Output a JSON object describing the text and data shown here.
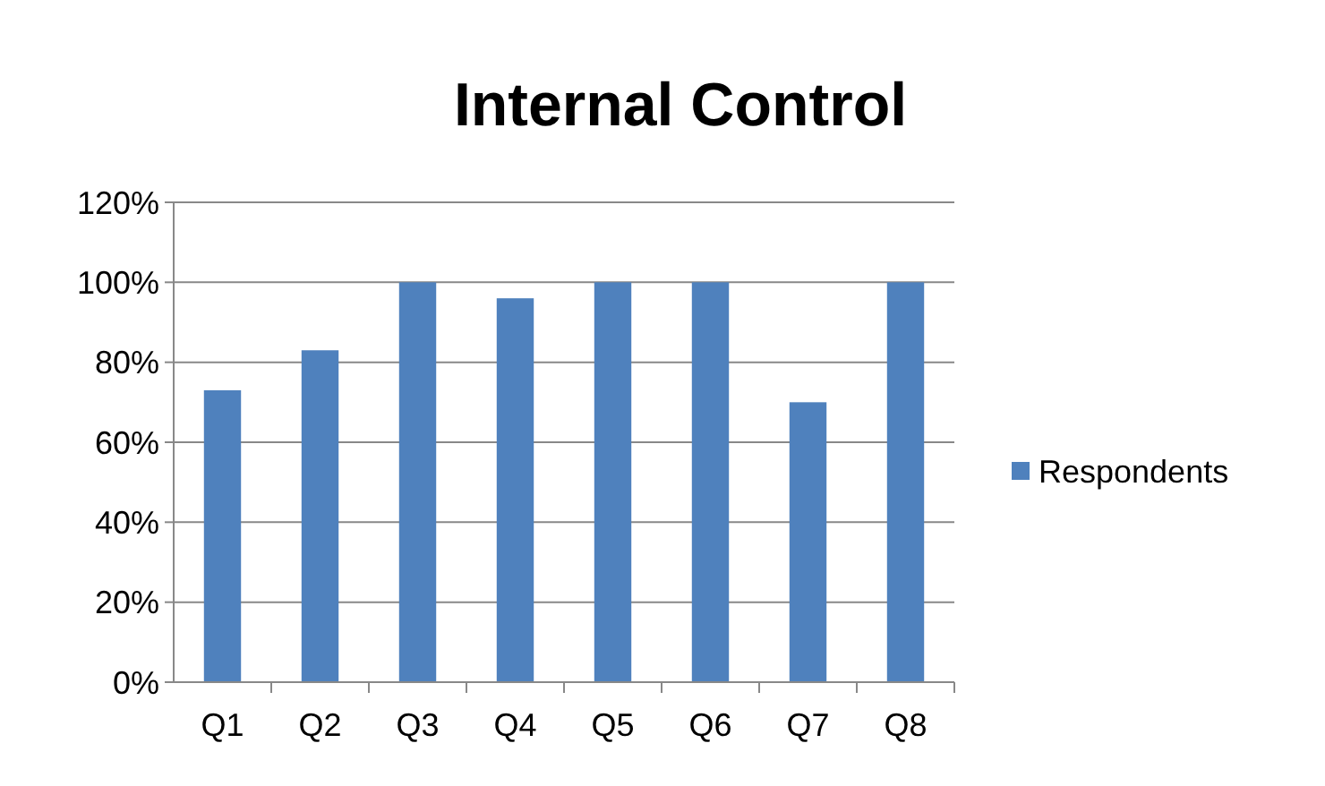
{
  "chart_data": {
    "type": "bar",
    "title": "Internal Control",
    "categories": [
      "Q1",
      "Q2",
      "Q3",
      "Q4",
      "Q5",
      "Q6",
      "Q7",
      "Q8"
    ],
    "series": [
      {
        "name": "Respondents",
        "color": "#4f81bd",
        "values": [
          73,
          83,
          100,
          96,
          100,
          100,
          70,
          100
        ]
      }
    ],
    "ylim": [
      0,
      120
    ],
    "yticks": [
      {
        "value": 0,
        "label": "0%"
      },
      {
        "value": 20,
        "label": "20%"
      },
      {
        "value": 40,
        "label": "40%"
      },
      {
        "value": 60,
        "label": "60%"
      },
      {
        "value": 80,
        "label": "80%"
      },
      {
        "value": 100,
        "label": "100%"
      },
      {
        "value": 120,
        "label": "120%"
      }
    ],
    "grid": "y",
    "legend": "right"
  }
}
